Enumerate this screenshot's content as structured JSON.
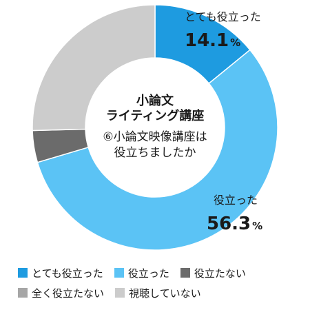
{
  "chart_data": {
    "type": "pie",
    "donut": true,
    "title_lines": [
      "小論文",
      "ライティング講座"
    ],
    "question_lines": [
      "⑥小論文映像講座は",
      "役立ちましたか"
    ],
    "slices": [
      {
        "name": "とても役立った",
        "value": 14.1,
        "color": "#1e9be0",
        "label": "とても役立った",
        "value_num": "14.1",
        "value_unit": "%"
      },
      {
        "name": "役立った",
        "value": 56.3,
        "color": "#5bc3f5",
        "label": "役立った",
        "value_num": "56.3",
        "value_unit": "%"
      },
      {
        "name": "役立たない",
        "value": 4.2,
        "color": "#6b6b6b"
      },
      {
        "name": "全く役立たない",
        "value": 0.0,
        "color": "#a6a6a6"
      },
      {
        "name": "視聴していない",
        "value": 25.4,
        "color": "#cccccc"
      }
    ],
    "legend": {
      "placement": "bottom",
      "rows": [
        [
          {
            "name": "とても役立った",
            "color": "#1e9be0"
          },
          {
            "name": "役立った",
            "color": "#5bc3f5"
          },
          {
            "name": "役立たない",
            "color": "#6b6b6b"
          }
        ],
        [
          {
            "name": "全く役立たない",
            "color": "#a6a6a6"
          },
          {
            "name": "視聴していない",
            "color": "#cccccc"
          }
        ]
      ]
    }
  }
}
